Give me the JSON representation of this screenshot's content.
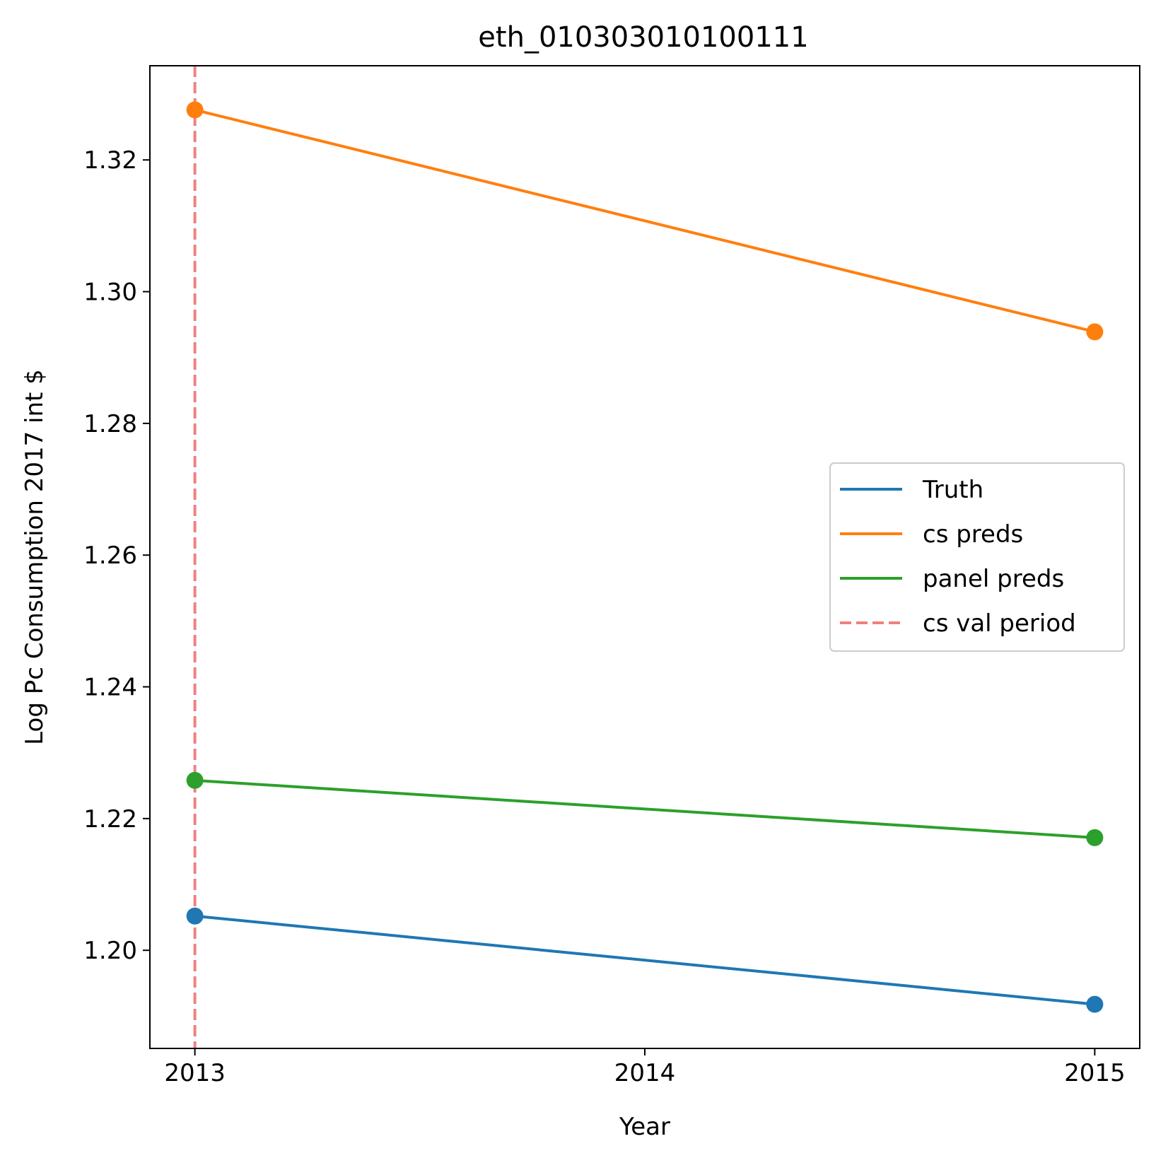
{
  "chart_data": {
    "type": "line",
    "title": "eth_010303010100111",
    "xlabel": "Year",
    "ylabel": "Log Pc Consumption 2017 int $",
    "x": [
      2013,
      2015
    ],
    "xticks": [
      2013,
      2014,
      2015
    ],
    "xlim": [
      2012.9,
      2015.1
    ],
    "yticks": [
      1.2,
      1.22,
      1.24,
      1.26,
      1.28,
      1.3,
      1.32
    ],
    "ylim": [
      1.1851,
      1.3343
    ],
    "grid": false,
    "legend_position": "center-right",
    "series": [
      {
        "name": "Truth",
        "values": [
          1.2052,
          1.1918
        ],
        "color": "#1f77b4",
        "style": "solid",
        "markers": true
      },
      {
        "name": "cs preds",
        "values": [
          1.3276,
          1.2939
        ],
        "color": "#ff7f0e",
        "style": "solid",
        "markers": true
      },
      {
        "name": "panel preds",
        "values": [
          1.2258,
          1.2171
        ],
        "color": "#2ca02c",
        "style": "solid",
        "markers": true
      }
    ],
    "vline": {
      "name": "cs val period",
      "x": 2013,
      "color": "#f08080",
      "style": "dashed"
    }
  }
}
